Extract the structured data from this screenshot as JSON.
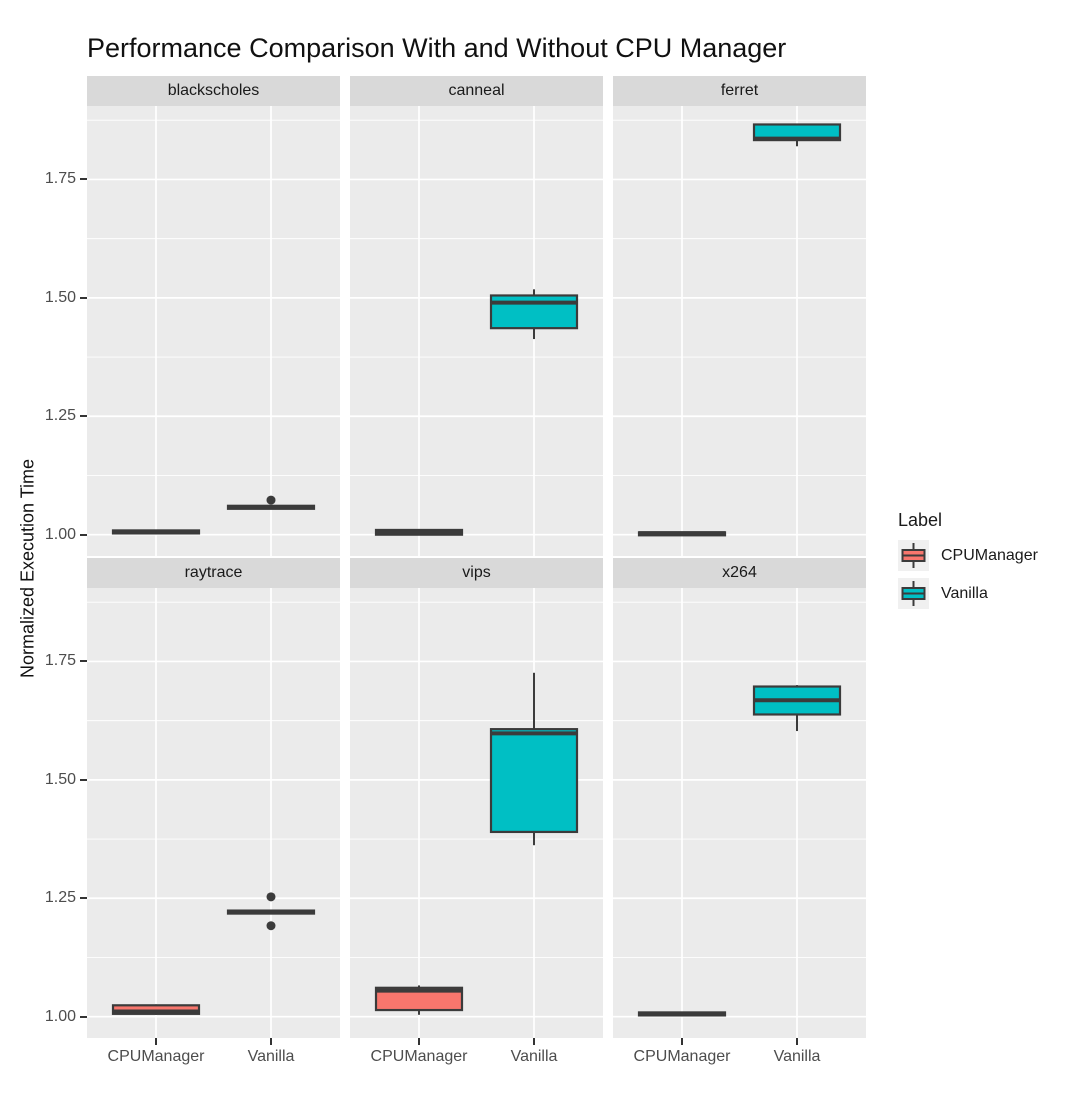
{
  "title": "Performance Comparison With and Without CPU Manager",
  "y_axis": {
    "label": "Normalized Execution Time",
    "ticks": [
      {
        "label": "1.00",
        "value": 1.0
      },
      {
        "label": "1.25",
        "value": 1.25
      },
      {
        "label": "1.50",
        "value": 1.5
      },
      {
        "label": "1.75",
        "value": 1.75
      }
    ]
  },
  "x_axis": {
    "categories": [
      "CPUManager",
      "Vanilla"
    ]
  },
  "legend": {
    "title": "Label",
    "position": "right",
    "items": [
      {
        "label": "CPUManager",
        "color": "#F8766D"
      },
      {
        "label": "Vanilla",
        "color": "#00BFC4"
      }
    ]
  },
  "colors": {
    "cpumanager": "#F8766D",
    "vanilla": "#00BFC4",
    "box_outline": "#3B3B3B",
    "panel_bg": "#EBEBEB",
    "strip_bg": "#D9D9D9",
    "gridline": "#FFFFFF",
    "tick_text": "#4D4D4D"
  },
  "chart_data": {
    "type": "boxplot",
    "facet_layout": {
      "rows": 2,
      "cols": 3
    },
    "categories": [
      "CPUManager",
      "Vanilla"
    ],
    "ylim": [
      0.955,
      1.905
    ],
    "y_major_ticks": [
      1.0,
      1.25,
      1.5,
      1.75
    ],
    "y_minor_ticks": [
      1.125,
      1.375,
      1.625,
      1.875
    ],
    "grid": true,
    "legend_position": "right",
    "facets": [
      {
        "name": "blackscholes",
        "boxes": [
          {
            "group": "CPUManager",
            "whisker_low": 1.002,
            "q1": 1.003,
            "median": 1.006,
            "q3": 1.009,
            "whisker_high": 1.01,
            "outliers": []
          },
          {
            "group": "Vanilla",
            "whisker_low": 1.054,
            "q1": 1.055,
            "median": 1.058,
            "q3": 1.061,
            "whisker_high": 1.062,
            "outliers": [
              1.073
            ]
          }
        ]
      },
      {
        "name": "canneal",
        "boxes": [
          {
            "group": "CPUManager",
            "whisker_low": 0.999,
            "q1": 1.0,
            "median": 1.005,
            "q3": 1.01,
            "whisker_high": 1.012,
            "outliers": []
          },
          {
            "group": "Vanilla",
            "whisker_low": 1.413,
            "q1": 1.436,
            "median": 1.49,
            "q3": 1.505,
            "whisker_high": 1.518,
            "outliers": []
          }
        ]
      },
      {
        "name": "ferret",
        "boxes": [
          {
            "group": "CPUManager",
            "whisker_low": 1.0,
            "q1": 1.001,
            "median": 1.003,
            "q3": 1.005,
            "whisker_high": 1.006,
            "outliers": []
          },
          {
            "group": "Vanilla",
            "whisker_low": 1.82,
            "q1": 1.833,
            "median": 1.836,
            "q3": 1.866,
            "whisker_high": 1.868,
            "outliers": []
          }
        ]
      },
      {
        "name": "raytrace",
        "boxes": [
          {
            "group": "CPUManager",
            "whisker_low": 1.004,
            "q1": 1.006,
            "median": 1.011,
            "q3": 1.024,
            "whisker_high": 1.026,
            "outliers": []
          },
          {
            "group": "Vanilla",
            "whisker_low": 1.219,
            "q1": 1.22,
            "median": 1.222,
            "q3": 1.224,
            "whisker_high": 1.226,
            "outliers": [
              1.253,
              1.192
            ]
          }
        ]
      },
      {
        "name": "vips",
        "boxes": [
          {
            "group": "CPUManager",
            "whisker_low": 1.004,
            "q1": 1.014,
            "median": 1.055,
            "q3": 1.061,
            "whisker_high": 1.066,
            "outliers": []
          },
          {
            "group": "Vanilla",
            "whisker_low": 1.362,
            "q1": 1.39,
            "median": 1.598,
            "q3": 1.607,
            "whisker_high": 1.726,
            "outliers": []
          }
        ]
      },
      {
        "name": "x264",
        "boxes": [
          {
            "group": "CPUManager",
            "whisker_low": 1.002,
            "q1": 1.003,
            "median": 1.006,
            "q3": 1.009,
            "whisker_high": 1.01,
            "outliers": []
          },
          {
            "group": "Vanilla",
            "whisker_low": 1.603,
            "q1": 1.638,
            "median": 1.668,
            "q3": 1.697,
            "whisker_high": 1.7,
            "outliers": []
          }
        ]
      }
    ]
  }
}
